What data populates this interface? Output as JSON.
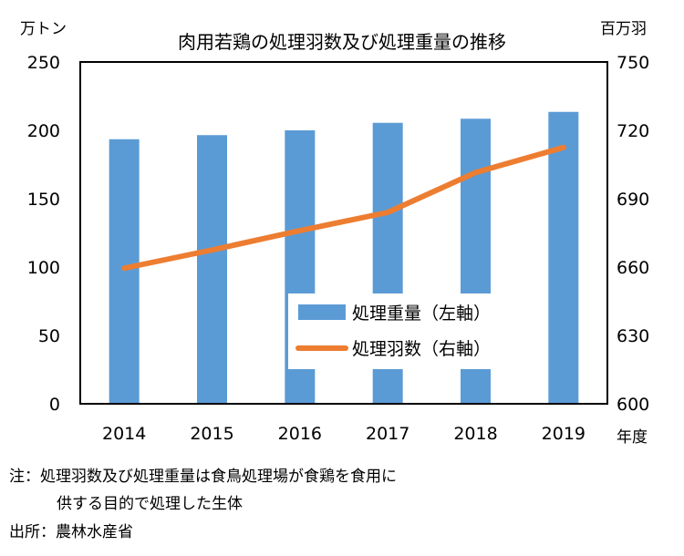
{
  "chart_data": {
    "type": "bar",
    "title": "肉用若鶏の処理羽数及び処理重量の推移",
    "categories": [
      "2014",
      "2015",
      "2016",
      "2017",
      "2018",
      "2019"
    ],
    "xlabel": "年度",
    "y_left_label": "万トン",
    "y_right_label": "百万羽",
    "y_left_lim": [
      0,
      250
    ],
    "y_right_lim": [
      600,
      750
    ],
    "y_left_ticks": [
      "0",
      "50",
      "100",
      "150",
      "200",
      "250"
    ],
    "y_right_ticks": [
      "600",
      "630",
      "660",
      "690",
      "720",
      "750"
    ],
    "series": [
      {
        "name": "処理重量（左軸）",
        "type": "bar",
        "axis": "left",
        "color": "#5b9bd5",
        "values": [
          193.5,
          196.5,
          200,
          205.5,
          208.5,
          213.5
        ]
      },
      {
        "name": "処理羽数（右軸）",
        "type": "line",
        "axis": "right",
        "color": "#ed7d31",
        "values": [
          659.5,
          667.5,
          676,
          684,
          701.5,
          712.5
        ]
      }
    ],
    "grid": false,
    "legend_position": "inside-center-right"
  },
  "notes": {
    "note_line1": "注：処理羽数及び処理重量は食鳥処理場が食鶏を食用に",
    "note_line2": "供する目的で処理した生体",
    "source": "出所：農林水産省"
  }
}
